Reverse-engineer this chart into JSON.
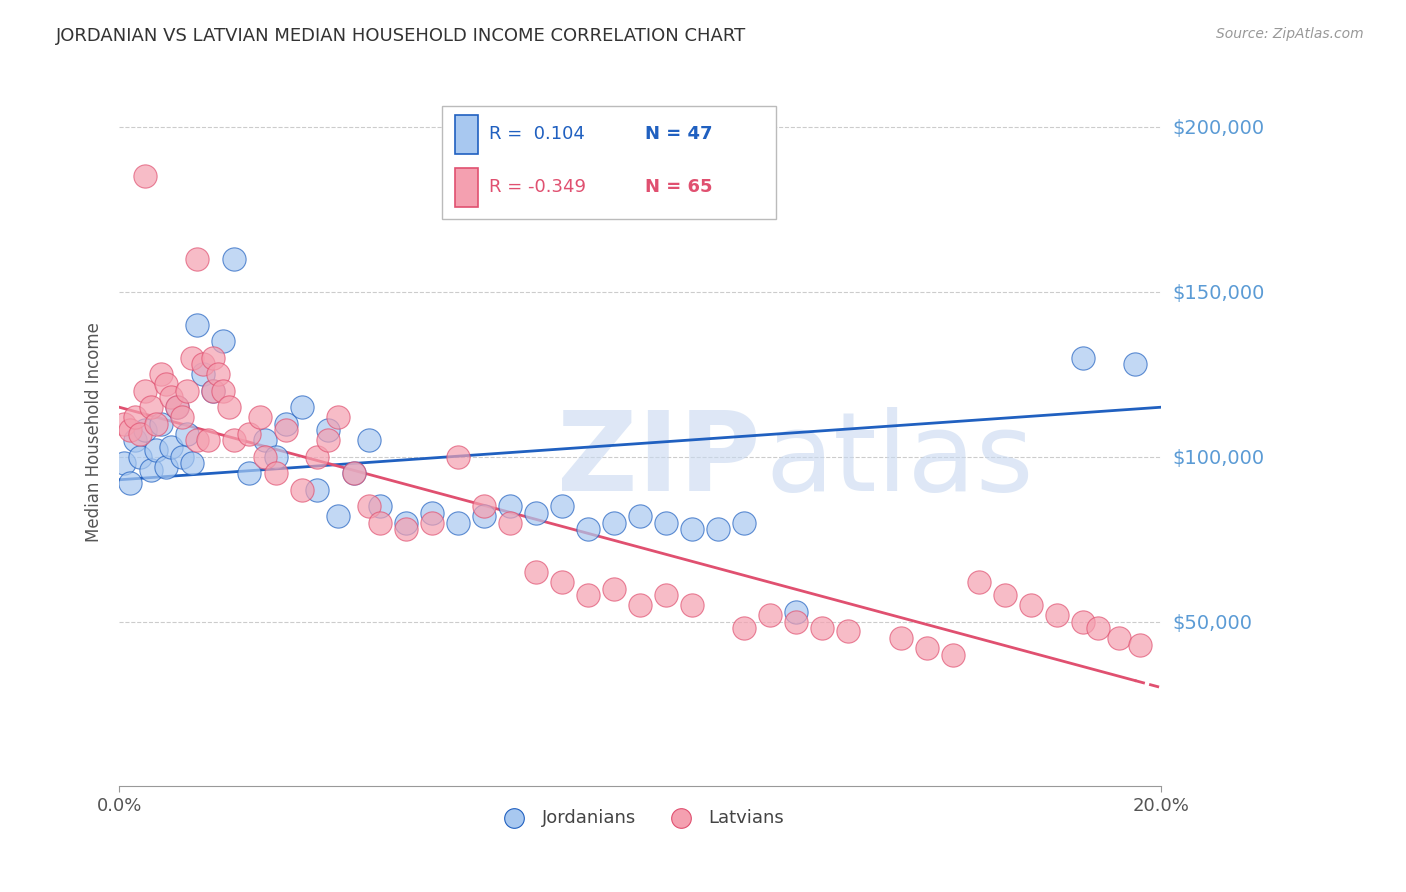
{
  "title": "JORDANIAN VS LATVIAN MEDIAN HOUSEHOLD INCOME CORRELATION CHART",
  "source": "Source: ZipAtlas.com",
  "ylabel": "Median Household Income",
  "yticks": [
    0,
    50000,
    100000,
    150000,
    200000
  ],
  "ytick_labels": [
    "",
    "$50,000",
    "$100,000",
    "$150,000",
    "$200,000"
  ],
  "xmin": 0.0,
  "xmax": 0.2,
  "ymin": 0,
  "ymax": 215000,
  "jordanian_color": "#A8C8F0",
  "latvian_color": "#F4A0B0",
  "trend_blue": "#2060C0",
  "trend_pink": "#E05070",
  "watermark_color": "#C8D8F0",
  "legend_R_blue": "R =  0.104",
  "legend_N_blue": "N = 47",
  "legend_R_pink": "R = -0.349",
  "legend_N_pink": "N = 65",
  "jordanians_label": "Jordanians",
  "latvians_label": "Latvians",
  "jordanian_x": [
    0.001,
    0.002,
    0.003,
    0.004,
    0.005,
    0.006,
    0.007,
    0.008,
    0.009,
    0.01,
    0.011,
    0.012,
    0.013,
    0.014,
    0.015,
    0.016,
    0.018,
    0.02,
    0.022,
    0.025,
    0.028,
    0.03,
    0.032,
    0.035,
    0.038,
    0.04,
    0.042,
    0.045,
    0.048,
    0.05,
    0.055,
    0.06,
    0.065,
    0.07,
    0.075,
    0.08,
    0.085,
    0.09,
    0.095,
    0.1,
    0.105,
    0.11,
    0.115,
    0.12,
    0.13,
    0.185,
    0.195
  ],
  "jordanian_y": [
    98000,
    92000,
    105000,
    100000,
    108000,
    96000,
    102000,
    110000,
    97000,
    103000,
    115000,
    100000,
    107000,
    98000,
    140000,
    125000,
    120000,
    135000,
    160000,
    95000,
    105000,
    100000,
    110000,
    115000,
    90000,
    108000,
    82000,
    95000,
    105000,
    85000,
    80000,
    83000,
    80000,
    82000,
    85000,
    83000,
    85000,
    78000,
    80000,
    82000,
    80000,
    78000,
    78000,
    80000,
    53000,
    130000,
    128000
  ],
  "latvian_x": [
    0.001,
    0.002,
    0.003,
    0.004,
    0.005,
    0.005,
    0.006,
    0.007,
    0.008,
    0.009,
    0.01,
    0.011,
    0.012,
    0.013,
    0.014,
    0.015,
    0.015,
    0.016,
    0.017,
    0.018,
    0.018,
    0.019,
    0.02,
    0.021,
    0.022,
    0.025,
    0.027,
    0.028,
    0.03,
    0.032,
    0.035,
    0.038,
    0.04,
    0.042,
    0.045,
    0.048,
    0.05,
    0.055,
    0.06,
    0.065,
    0.07,
    0.075,
    0.08,
    0.085,
    0.09,
    0.095,
    0.1,
    0.105,
    0.11,
    0.12,
    0.125,
    0.13,
    0.135,
    0.14,
    0.15,
    0.155,
    0.16,
    0.165,
    0.17,
    0.175,
    0.18,
    0.185,
    0.188,
    0.192,
    0.196
  ],
  "latvian_y": [
    110000,
    108000,
    112000,
    107000,
    120000,
    185000,
    115000,
    110000,
    125000,
    122000,
    118000,
    115000,
    112000,
    120000,
    130000,
    160000,
    105000,
    128000,
    105000,
    130000,
    120000,
    125000,
    120000,
    115000,
    105000,
    107000,
    112000,
    100000,
    95000,
    108000,
    90000,
    100000,
    105000,
    112000,
    95000,
    85000,
    80000,
    78000,
    80000,
    100000,
    85000,
    80000,
    65000,
    62000,
    58000,
    60000,
    55000,
    58000,
    55000,
    48000,
    52000,
    50000,
    48000,
    47000,
    45000,
    42000,
    40000,
    62000,
    58000,
    55000,
    52000,
    50000,
    48000,
    45000,
    43000
  ]
}
